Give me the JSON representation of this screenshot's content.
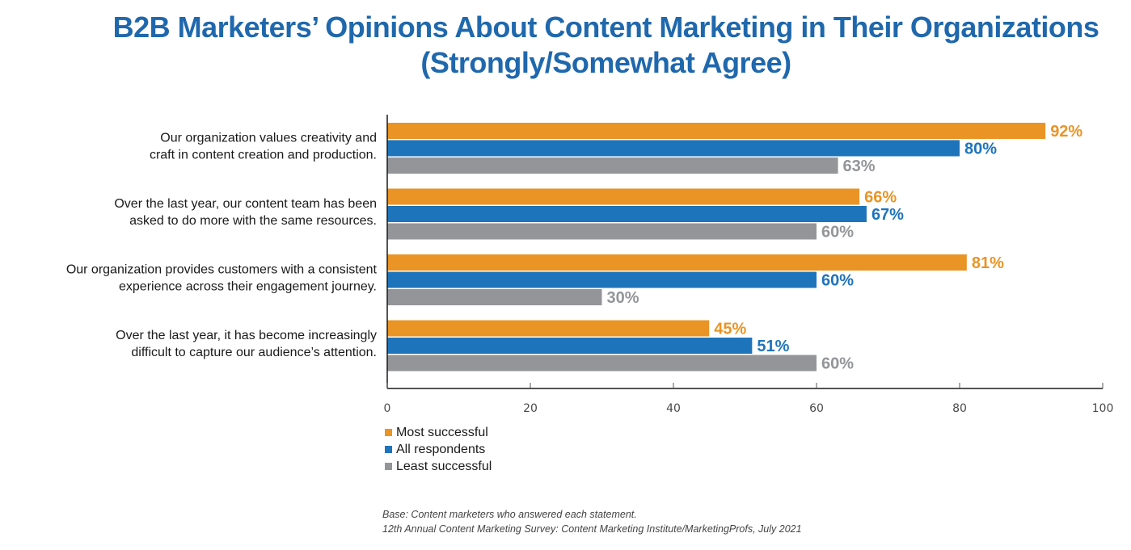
{
  "chart_data": {
    "type": "bar",
    "orientation": "horizontal",
    "title": "B2B Marketers’ Opinions About Content Marketing in Their Organizations",
    "subtitle": "(Strongly/Somewhat Agree)",
    "categories": [
      [
        "Our organization values creativity and",
        "craft in content creation and production."
      ],
      [
        "Over the last year, our content team has been",
        "asked to do more with the same resources."
      ],
      [
        "Our organization provides customers with a consistent",
        "experience across their engagement journey."
      ],
      [
        "Over the last year, it has become increasingly",
        "difficult to capture our audience’s attention."
      ]
    ],
    "series": [
      {
        "name": "Most successful",
        "color": "#e99425",
        "values": [
          92,
          66,
          81,
          45
        ]
      },
      {
        "name": "All respondents",
        "color": "#1e74bb",
        "values": [
          80,
          67,
          60,
          51
        ]
      },
      {
        "name": "Least successful",
        "color": "#939598",
        "values": [
          63,
          60,
          30,
          60
        ]
      }
    ],
    "value_suffix": "%",
    "xlim": [
      0,
      100
    ],
    "xticks": [
      0,
      20,
      40,
      60,
      80,
      100
    ],
    "xlabel": "",
    "ylabel": "",
    "grid": false,
    "legend_position": "bottom-left"
  },
  "footnote": {
    "base": "Base: Content marketers who answered each statement.",
    "source": "12th Annual Content Marketing Survey: Content Marketing Institute/MarketingProfs, July 2021"
  }
}
